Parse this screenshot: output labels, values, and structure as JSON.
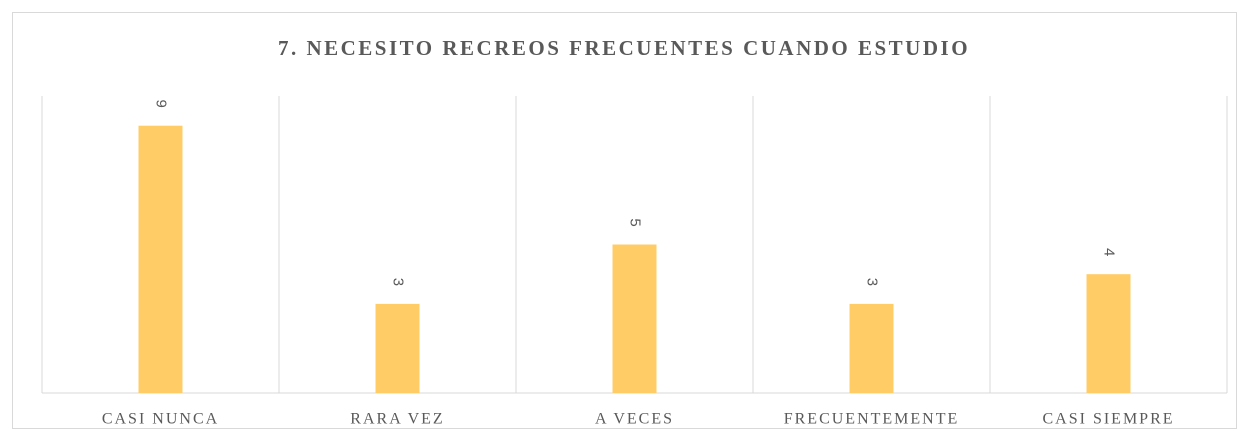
{
  "chart_data": {
    "type": "bar",
    "title": "7. NECESITO RECREOS FRECUENTES CUANDO ESTUDIO",
    "categories": [
      "CASI NUNCA",
      "RARA VEZ",
      "A VECES",
      "FRECUENTEMENTE",
      "CASI SIEMPRE"
    ],
    "values": [
      9,
      3,
      5,
      3,
      4
    ],
    "color": "#ffcc66",
    "ylim": [
      0,
      10
    ]
  }
}
